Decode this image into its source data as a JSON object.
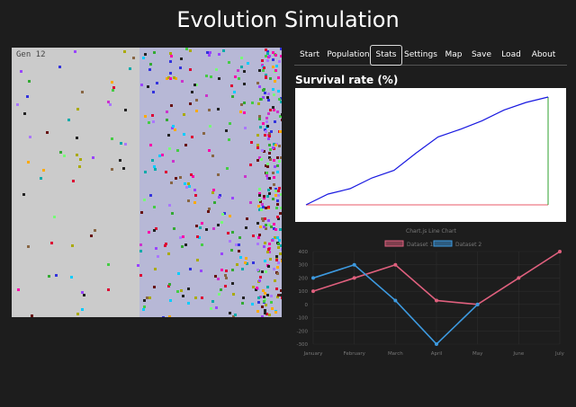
{
  "app": {
    "title": "Evolution Simulation"
  },
  "simulation": {
    "generation_label": "Gen 12"
  },
  "tabs": [
    {
      "label": "Start",
      "active": false
    },
    {
      "label": "Population",
      "active": false
    },
    {
      "label": "Stats",
      "active": true
    },
    {
      "label": "Settings",
      "active": false
    },
    {
      "label": "Map",
      "active": false
    },
    {
      "label": "Save",
      "active": false
    },
    {
      "label": "Load",
      "active": false
    },
    {
      "label": "About",
      "active": false
    }
  ],
  "stats": {
    "heading": "Survival rate (%)"
  },
  "chart_data": [
    {
      "type": "line",
      "title": "",
      "x": [
        0,
        1,
        2,
        3,
        4,
        5,
        6,
        7,
        8,
        9,
        10,
        11
      ],
      "series": [
        {
          "values": [
            0,
            10,
            15,
            25,
            32,
            48,
            63,
            70,
            78,
            88,
            95,
            100
          ]
        }
      ],
      "ylim": [
        0,
        100
      ],
      "colors": {
        "line": "#1818e0",
        "baseline": "#e85a6a",
        "end_marker": "#2ca02c"
      },
      "grid": false
    },
    {
      "type": "line",
      "title": "Chart.js Line Chart",
      "categories": [
        "January",
        "February",
        "March",
        "April",
        "May",
        "June",
        "July"
      ],
      "series": [
        {
          "name": "Dataset 1",
          "values": [
            100,
            200,
            300,
            30,
            0,
            200,
            400
          ],
          "color": "#e0607e"
        },
        {
          "name": "Dataset 2",
          "values": [
            200,
            300,
            30,
            -300,
            0,
            null,
            null
          ],
          "color": "#3d9ae0"
        }
      ],
      "ylim": [
        -300,
        400
      ],
      "yticks": [
        400,
        300,
        200,
        100,
        0,
        -100,
        -200,
        -300
      ],
      "legend_position": "top",
      "grid": true
    }
  ]
}
